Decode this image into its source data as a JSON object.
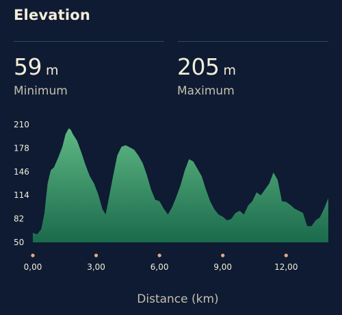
{
  "header": {
    "title": "Elevation"
  },
  "stats": {
    "minimum": {
      "value": "59",
      "unit": "m",
      "label": "Minimum"
    },
    "maximum": {
      "value": "205",
      "unit": "m",
      "label": "Maximum"
    }
  },
  "colors": {
    "background": "#0e1b33",
    "area_top": "#5fb883",
    "area_bottom": "#1a6a4c",
    "tick_dot": "#e3a985",
    "text": "#f5ecd8",
    "muted_text": "#c7bfae"
  },
  "chart_data": {
    "type": "area",
    "xlabel": "Distance (km)",
    "ylabel": "",
    "xlim": [
      0,
      14
    ],
    "ylim": [
      50,
      210
    ],
    "yticks": [
      210,
      178,
      146,
      114,
      82,
      50
    ],
    "xticks": [
      "0,00",
      "3,00",
      "6,00",
      "9,00",
      "12,00"
    ],
    "x": [
      0.0,
      0.2,
      0.4,
      0.55,
      0.7,
      0.85,
      1.0,
      1.2,
      1.4,
      1.55,
      1.7,
      1.8,
      1.9,
      2.1,
      2.3,
      2.5,
      2.7,
      2.9,
      3.1,
      3.3,
      3.45,
      3.6,
      3.8,
      4.0,
      4.2,
      4.4,
      4.6,
      4.8,
      5.0,
      5.2,
      5.4,
      5.6,
      5.8,
      6.0,
      6.2,
      6.4,
      6.6,
      6.8,
      7.0,
      7.2,
      7.4,
      7.6,
      7.8,
      8.0,
      8.2,
      8.4,
      8.6,
      8.8,
      9.0,
      9.2,
      9.4,
      9.6,
      9.8,
      10.0,
      10.2,
      10.4,
      10.6,
      10.8,
      11.0,
      11.2,
      11.4,
      11.6,
      11.8,
      12.0,
      12.2,
      12.4,
      12.6,
      12.8,
      13.0,
      13.2,
      13.4,
      13.6,
      13.8,
      14.0
    ],
    "values": [
      63,
      61,
      68,
      90,
      130,
      148,
      152,
      165,
      180,
      197,
      205,
      203,
      197,
      188,
      172,
      155,
      140,
      130,
      115,
      95,
      88,
      110,
      140,
      168,
      180,
      182,
      179,
      176,
      168,
      158,
      142,
      122,
      108,
      106,
      96,
      88,
      98,
      112,
      128,
      148,
      163,
      160,
      150,
      140,
      122,
      106,
      95,
      88,
      85,
      80,
      82,
      90,
      93,
      88,
      100,
      106,
      118,
      114,
      122,
      130,
      145,
      135,
      106,
      105,
      101,
      96,
      93,
      90,
      72,
      72,
      80,
      84,
      96,
      110
    ]
  },
  "footer": {
    "xaxis_label": "Distance (km)"
  }
}
